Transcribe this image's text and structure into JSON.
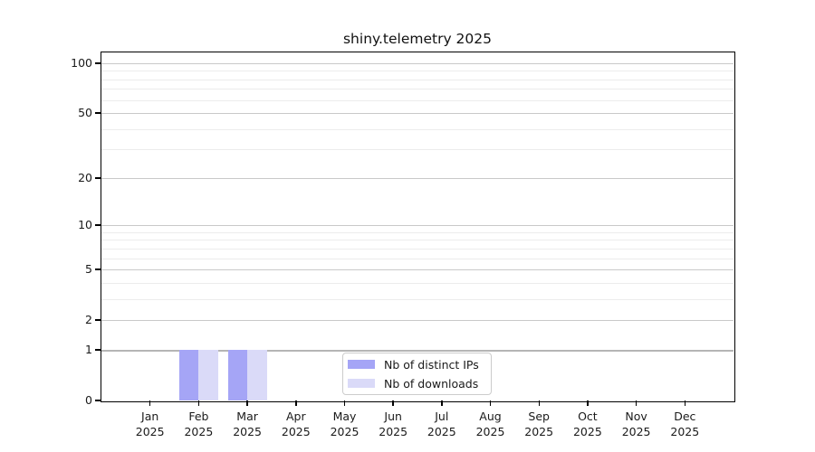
{
  "figure": {
    "title": "shiny.telemetry 2025"
  },
  "chart_data": {
    "type": "bar",
    "title": "shiny.telemetry 2025",
    "x_months": [
      "Jan",
      "Feb",
      "Mar",
      "Apr",
      "May",
      "Jun",
      "Jul",
      "Aug",
      "Sep",
      "Oct",
      "Nov",
      "Dec"
    ],
    "x_year": "2025",
    "categories": [
      "Jan 2025",
      "Feb 2025",
      "Mar 2025",
      "Apr 2025",
      "May 2025",
      "Jun 2025",
      "Jul 2025",
      "Aug 2025",
      "Sep 2025",
      "Oct 2025",
      "Nov 2025",
      "Dec 2025"
    ],
    "series": [
      {
        "name": "Nb of distinct IPs",
        "color": "#a5a5f6",
        "values": [
          0,
          1,
          1,
          0,
          0,
          0,
          0,
          0,
          0,
          0,
          0,
          0
        ]
      },
      {
        "name": "Nb of downloads",
        "color": "#dadaf8",
        "values": [
          0,
          1,
          1,
          0,
          0,
          0,
          0,
          0,
          0,
          0,
          0,
          0
        ]
      }
    ],
    "xlabel": "",
    "ylabel": "",
    "y_scale": "log1p",
    "ylim": [
      0,
      116
    ],
    "y_tick_values": [
      0,
      1,
      2,
      5,
      10,
      20,
      50,
      100
    ],
    "y_tick_labels": [
      "0",
      "1",
      "2",
      "5",
      "10",
      "20",
      "50",
      "100"
    ],
    "y_major_gridlines": [
      1,
      2,
      5,
      10,
      20,
      50,
      100
    ],
    "y_minor_gridlines": [
      3,
      4,
      6,
      7,
      8,
      9,
      30,
      40,
      60,
      70,
      80,
      90
    ],
    "grid": true,
    "legend_position": "bottom-center-inside",
    "colors": {
      "bar_distinct_ips": "#a5a5f6",
      "bar_downloads": "#dadaf8",
      "grid_major": "#c9c9c9",
      "grid_minor": "#ececec",
      "grid_baseline_1": "#b5b5b5",
      "spine": "#000000",
      "background": "#ffffff",
      "legend_border": "#cccccc"
    }
  }
}
